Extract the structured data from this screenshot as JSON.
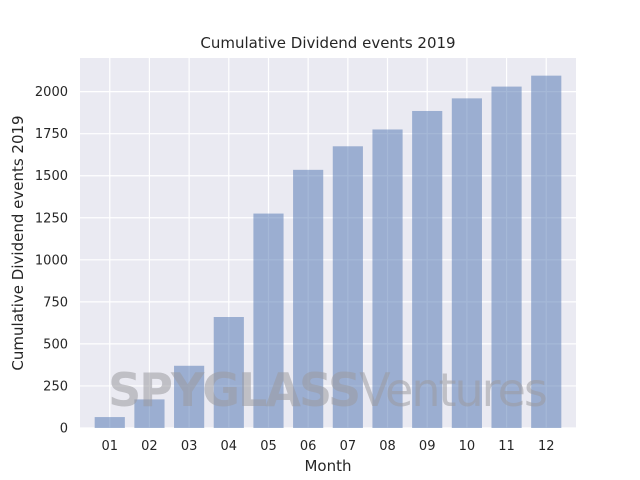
{
  "chart_data": {
    "type": "bar",
    "title": "Cumulative Dividend events 2019",
    "xlabel": "Month",
    "ylabel": "Cumulative Dividend events 2019",
    "categories": [
      "01",
      "02",
      "03",
      "04",
      "05",
      "06",
      "07",
      "08",
      "09",
      "10",
      "11",
      "12"
    ],
    "values": [
      65,
      170,
      370,
      660,
      1275,
      1535,
      1675,
      1775,
      1885,
      1960,
      2030,
      2095
    ],
    "ylim": [
      0,
      2200
    ],
    "yticks": [
      0,
      250,
      500,
      750,
      1000,
      1250,
      1500,
      1750,
      2000
    ],
    "grid": true,
    "bar_color": "#4c72b0",
    "background_color": "#eaeaf2",
    "grid_color": "#ffffff"
  },
  "watermark": {
    "brand_bold": "SPYGLASS",
    "brand_light": "Ventures"
  }
}
